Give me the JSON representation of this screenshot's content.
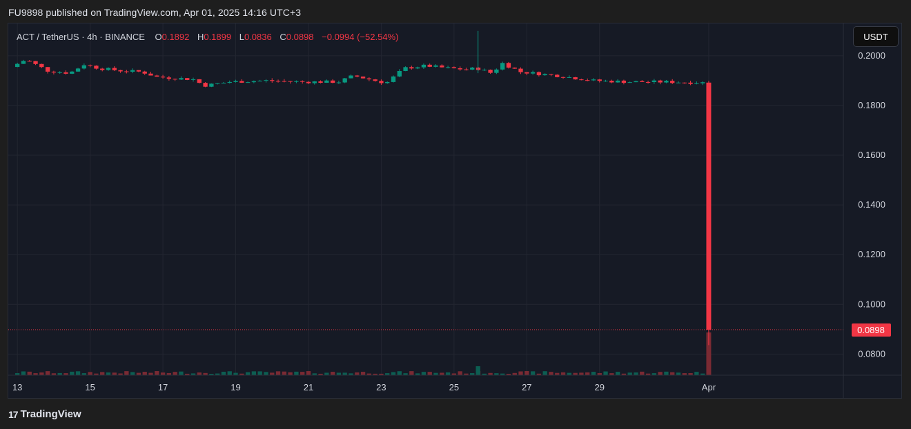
{
  "publish": {
    "text": "FU9898 published on TradingView.com, Apr 01, 2025 14:16 UTC+3"
  },
  "chart_data": {
    "type": "candlestick",
    "symbol": "ACT / TetherUS",
    "interval": "4h",
    "exchange": "BINANCE",
    "ohlc": {
      "o_label": "O",
      "o": "0.1892",
      "h_label": "H",
      "h": "0.1899",
      "l_label": "L",
      "l": "0.0836",
      "c_label": "C",
      "c": "0.0898",
      "change": "−0.0994 (−52.54%)"
    },
    "currency": "USDT",
    "ylim": [
      0.0715,
      0.213
    ],
    "y_ticks": [
      "0.2000",
      "0.1800",
      "0.1600",
      "0.1400",
      "0.1200",
      "0.1000",
      "0.0800"
    ],
    "y_tick_values": [
      0.2,
      0.18,
      0.16,
      0.14,
      0.12,
      0.1,
      0.08
    ],
    "x_ticks": [
      "13",
      "15",
      "17",
      "19",
      "21",
      "23",
      "25",
      "27",
      "29",
      "Apr"
    ],
    "x_tick_days": [
      0,
      2,
      4,
      6,
      8,
      10,
      12,
      14,
      16,
      19
    ],
    "x_day_range": [
      -0.25,
      22.7
    ],
    "last_price": "0.0898",
    "last_price_value": 0.0898,
    "colors": {
      "up": "#089981",
      "down": "#f23645",
      "grid": "#232631",
      "axis_text": "#d1d4dc"
    },
    "key_points": [
      {
        "day": 0.0,
        "close": 0.1955
      },
      {
        "day": 0.4,
        "close": 0.1985
      },
      {
        "day": 1.0,
        "close": 0.194
      },
      {
        "day": 1.6,
        "close": 0.193
      },
      {
        "day": 2.0,
        "close": 0.1965
      },
      {
        "day": 2.4,
        "close": 0.195
      },
      {
        "day": 3.0,
        "close": 0.194
      },
      {
        "day": 3.6,
        "close": 0.1935
      },
      {
        "day": 4.0,
        "close": 0.1915
      },
      {
        "day": 5.0,
        "close": 0.1905
      },
      {
        "day": 5.3,
        "close": 0.188
      },
      {
        "day": 6.0,
        "close": 0.1895
      },
      {
        "day": 7.0,
        "close": 0.19
      },
      {
        "day": 8.0,
        "close": 0.1895
      },
      {
        "day": 9.0,
        "close": 0.1895
      },
      {
        "day": 9.4,
        "close": 0.192
      },
      {
        "day": 10.3,
        "close": 0.189
      },
      {
        "day": 10.8,
        "close": 0.195
      },
      {
        "day": 11.4,
        "close": 0.196
      },
      {
        "day": 12.0,
        "close": 0.195
      },
      {
        "day": 12.5,
        "close": 0.1945
      },
      {
        "day": 12.8,
        "close": 0.195
      },
      {
        "day": 13.2,
        "close": 0.193
      },
      {
        "day": 13.5,
        "close": 0.197
      },
      {
        "day": 14.0,
        "close": 0.1935
      },
      {
        "day": 15.0,
        "close": 0.192
      },
      {
        "day": 16.0,
        "close": 0.19
      },
      {
        "day": 17.0,
        "close": 0.1895
      },
      {
        "day": 18.0,
        "close": 0.1895
      },
      {
        "day": 18.9,
        "close": 0.1892
      }
    ],
    "spike": {
      "day": 12.66,
      "high": 0.21,
      "low": 0.193
    },
    "final_candle": {
      "day": 19.0,
      "open": 0.1892,
      "high": 0.1899,
      "low": 0.0836,
      "close": 0.0898
    }
  },
  "footer": {
    "logo_mark": "17",
    "logo_text": "TradingView"
  }
}
